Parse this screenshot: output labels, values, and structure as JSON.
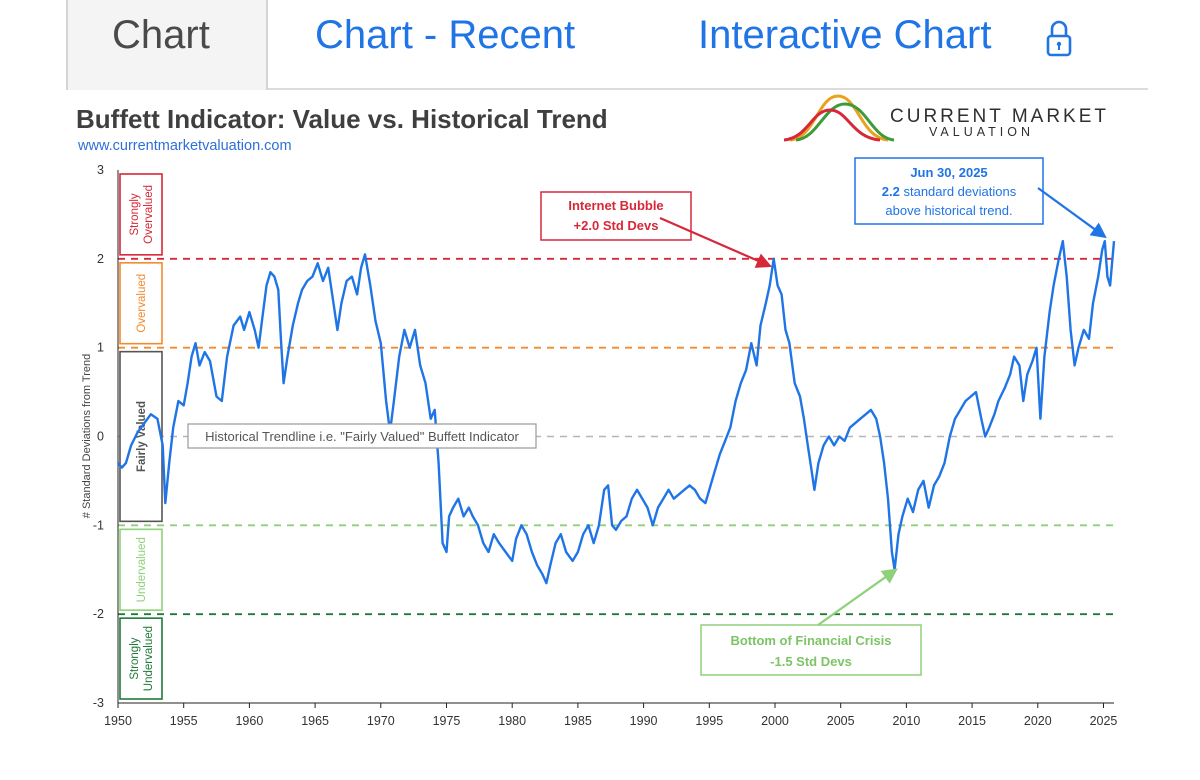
{
  "tabs": [
    {
      "label": "Chart",
      "active": true
    },
    {
      "label": "Chart - Recent",
      "active": false
    },
    {
      "label": "Interactive Chart",
      "active": false,
      "icon": "lock-icon"
    }
  ],
  "colors": {
    "tab_link": "#1f74e6",
    "tab_active_text": "#4a4a4a",
    "series_line": "#1f74e6",
    "strongly_overvalued": "#d62839",
    "overvalued": "#f28a2e",
    "fairly_valued": "#555555",
    "undervalued": "#8fd07a",
    "strongly_undervalued": "#1f7a3a",
    "trend": "#b5b5b5"
  },
  "logo": {
    "line1": "CURRENT MARKET",
    "line2": "VALUATION"
  },
  "chart_data": {
    "type": "line",
    "title": "Buffett Indicator: Value vs. Historical Trend",
    "subtitle": "www.currentmarketvaluation.com",
    "xlabel": "",
    "ylabel": "# Standard Deviations from Trend",
    "xlim": [
      1950,
      2025.8
    ],
    "ylim": [
      -3,
      3
    ],
    "x_ticks": [
      1950,
      1955,
      1960,
      1965,
      1970,
      1975,
      1980,
      1985,
      1990,
      1995,
      2000,
      2005,
      2010,
      2015,
      2020,
      2025
    ],
    "y_ticks": [
      3,
      2,
      1,
      0,
      -1,
      -2,
      -3
    ],
    "reference_lines": [
      {
        "y": 2,
        "color": "#d62839",
        "style": "dashed"
      },
      {
        "y": 1,
        "color": "#f28a2e",
        "style": "dashed"
      },
      {
        "y": 0,
        "color": "#b5b5b5",
        "style": "dashed"
      },
      {
        "y": -1,
        "color": "#8fd07a",
        "style": "dashed"
      },
      {
        "y": -2,
        "color": "#1f7a3a",
        "style": "dashed"
      }
    ],
    "zones": [
      {
        "label": "Strongly Overvalued",
        "lines": [
          "Strongly",
          "Overvalued"
        ],
        "from": 2,
        "to": 3,
        "color": "#d62839"
      },
      {
        "label": "Overvalued",
        "lines": [
          "Overvalued"
        ],
        "from": 1,
        "to": 2,
        "color": "#f28a2e"
      },
      {
        "label": "Fairly Valued",
        "lines": [
          "Fairly Valued"
        ],
        "from": -1,
        "to": 1,
        "color": "#555555"
      },
      {
        "label": "Undervalued",
        "lines": [
          "Undervalued"
        ],
        "from": -2,
        "to": -1,
        "color": "#8fd07a"
      },
      {
        "label": "Strongly Undervalued",
        "lines": [
          "Strongly",
          "Undervalued"
        ],
        "from": -3,
        "to": -2,
        "color": "#1f7a3a"
      }
    ],
    "annotations": {
      "trendline": "Historical Trendline i.e. \"Fairly Valued\" Buffett Indicator",
      "bubble": {
        "line1": "Internet Bubble",
        "line2": "+2.0 Std Devs",
        "x": 2000,
        "y": 2.0
      },
      "crisis": {
        "line1": "Bottom of Financial Crisis",
        "line2": "-1.5 Std Devs",
        "x": 2009.0,
        "y": -1.55
      },
      "latest": {
        "date": "Jun 30, 2025",
        "value_text": "2.2",
        "line2_rest": " standard deviations",
        "line3": "above historical trend.",
        "x": 2025.3,
        "y": 2.2
      }
    },
    "series": [
      {
        "name": "Buffett Indicator (std devs from trend)",
        "color": "#1f74e6",
        "points": [
          [
            1950.0,
            -0.3
          ],
          [
            1950.3,
            -0.35
          ],
          [
            1950.6,
            -0.3
          ],
          [
            1951.0,
            -0.1
          ],
          [
            1951.5,
            0.05
          ],
          [
            1952.0,
            0.15
          ],
          [
            1952.5,
            0.25
          ],
          [
            1953.0,
            0.2
          ],
          [
            1953.4,
            -0.1
          ],
          [
            1953.6,
            -0.75
          ],
          [
            1953.9,
            -0.3
          ],
          [
            1954.2,
            0.1
          ],
          [
            1954.6,
            0.4
          ],
          [
            1955.0,
            0.35
          ],
          [
            1955.3,
            0.6
          ],
          [
            1955.6,
            0.9
          ],
          [
            1955.9,
            1.05
          ],
          [
            1956.2,
            0.8
          ],
          [
            1956.6,
            0.95
          ],
          [
            1957.0,
            0.85
          ],
          [
            1957.5,
            0.45
          ],
          [
            1957.9,
            0.4
          ],
          [
            1958.3,
            0.9
          ],
          [
            1958.8,
            1.25
          ],
          [
            1959.3,
            1.35
          ],
          [
            1959.6,
            1.2
          ],
          [
            1960.0,
            1.4
          ],
          [
            1960.4,
            1.2
          ],
          [
            1960.7,
            1.0
          ],
          [
            1961.0,
            1.35
          ],
          [
            1961.3,
            1.7
          ],
          [
            1961.6,
            1.85
          ],
          [
            1961.9,
            1.8
          ],
          [
            1962.2,
            1.65
          ],
          [
            1962.4,
            1.1
          ],
          [
            1962.6,
            0.6
          ],
          [
            1962.9,
            0.9
          ],
          [
            1963.3,
            1.25
          ],
          [
            1963.7,
            1.5
          ],
          [
            1964.0,
            1.65
          ],
          [
            1964.4,
            1.75
          ],
          [
            1964.8,
            1.8
          ],
          [
            1965.2,
            1.95
          ],
          [
            1965.6,
            1.75
          ],
          [
            1966.0,
            1.9
          ],
          [
            1966.3,
            1.6
          ],
          [
            1966.7,
            1.2
          ],
          [
            1967.0,
            1.5
          ],
          [
            1967.4,
            1.75
          ],
          [
            1967.8,
            1.8
          ],
          [
            1968.2,
            1.6
          ],
          [
            1968.5,
            1.9
          ],
          [
            1968.8,
            2.05
          ],
          [
            1969.2,
            1.7
          ],
          [
            1969.6,
            1.3
          ],
          [
            1970.0,
            1.05
          ],
          [
            1970.4,
            0.4
          ],
          [
            1970.7,
            0.05
          ],
          [
            1971.0,
            0.4
          ],
          [
            1971.4,
            0.9
          ],
          [
            1971.8,
            1.2
          ],
          [
            1972.2,
            1.0
          ],
          [
            1972.6,
            1.2
          ],
          [
            1973.0,
            0.8
          ],
          [
            1973.4,
            0.6
          ],
          [
            1973.8,
            0.2
          ],
          [
            1974.1,
            0.3
          ],
          [
            1974.4,
            -0.3
          ],
          [
            1974.7,
            -1.2
          ],
          [
            1975.0,
            -1.3
          ],
          [
            1975.2,
            -0.9
          ],
          [
            1975.5,
            -0.8
          ],
          [
            1975.9,
            -0.7
          ],
          [
            1976.3,
            -0.9
          ],
          [
            1976.7,
            -0.8
          ],
          [
            1977.0,
            -0.9
          ],
          [
            1977.4,
            -1.0
          ],
          [
            1977.8,
            -1.2
          ],
          [
            1978.2,
            -1.3
          ],
          [
            1978.6,
            -1.1
          ],
          [
            1979.0,
            -1.2
          ],
          [
            1979.5,
            -1.3
          ],
          [
            1980.0,
            -1.4
          ],
          [
            1980.3,
            -1.15
          ],
          [
            1980.7,
            -1.0
          ],
          [
            1981.1,
            -1.1
          ],
          [
            1981.5,
            -1.3
          ],
          [
            1981.9,
            -1.45
          ],
          [
            1982.3,
            -1.55
          ],
          [
            1982.6,
            -1.65
          ],
          [
            1982.9,
            -1.45
          ],
          [
            1983.3,
            -1.2
          ],
          [
            1983.7,
            -1.1
          ],
          [
            1984.1,
            -1.3
          ],
          [
            1984.6,
            -1.4
          ],
          [
            1985.0,
            -1.3
          ],
          [
            1985.4,
            -1.1
          ],
          [
            1985.8,
            -1.0
          ],
          [
            1986.2,
            -1.2
          ],
          [
            1986.6,
            -1.0
          ],
          [
            1987.0,
            -0.6
          ],
          [
            1987.3,
            -0.55
          ],
          [
            1987.6,
            -1.0
          ],
          [
            1987.9,
            -1.05
          ],
          [
            1988.3,
            -0.95
          ],
          [
            1988.7,
            -0.9
          ],
          [
            1989.1,
            -0.7
          ],
          [
            1989.5,
            -0.6
          ],
          [
            1989.9,
            -0.7
          ],
          [
            1990.3,
            -0.8
          ],
          [
            1990.7,
            -1.0
          ],
          [
            1991.1,
            -0.8
          ],
          [
            1991.5,
            -0.7
          ],
          [
            1991.9,
            -0.6
          ],
          [
            1992.3,
            -0.7
          ],
          [
            1992.7,
            -0.65
          ],
          [
            1993.1,
            -0.6
          ],
          [
            1993.5,
            -0.55
          ],
          [
            1993.9,
            -0.6
          ],
          [
            1994.3,
            -0.7
          ],
          [
            1994.7,
            -0.75
          ],
          [
            1995.0,
            -0.6
          ],
          [
            1995.4,
            -0.4
          ],
          [
            1995.8,
            -0.2
          ],
          [
            1996.2,
            -0.05
          ],
          [
            1996.6,
            0.1
          ],
          [
            1997.0,
            0.4
          ],
          [
            1997.4,
            0.6
          ],
          [
            1997.8,
            0.75
          ],
          [
            1998.2,
            1.05
          ],
          [
            1998.6,
            0.8
          ],
          [
            1998.9,
            1.25
          ],
          [
            1999.3,
            1.5
          ],
          [
            1999.6,
            1.7
          ],
          [
            1999.9,
            2.0
          ],
          [
            2000.2,
            1.7
          ],
          [
            2000.5,
            1.6
          ],
          [
            2000.8,
            1.2
          ],
          [
            2001.1,
            1.05
          ],
          [
            2001.5,
            0.6
          ],
          [
            2001.9,
            0.45
          ],
          [
            2002.2,
            0.2
          ],
          [
            2002.5,
            -0.1
          ],
          [
            2002.8,
            -0.4
          ],
          [
            2003.0,
            -0.6
          ],
          [
            2003.3,
            -0.3
          ],
          [
            2003.7,
            -0.1
          ],
          [
            2004.1,
            0.0
          ],
          [
            2004.5,
            -0.1
          ],
          [
            2004.9,
            0.0
          ],
          [
            2005.3,
            -0.05
          ],
          [
            2005.7,
            0.1
          ],
          [
            2006.1,
            0.15
          ],
          [
            2006.5,
            0.2
          ],
          [
            2006.9,
            0.25
          ],
          [
            2007.3,
            0.3
          ],
          [
            2007.7,
            0.2
          ],
          [
            2008.0,
            0.0
          ],
          [
            2008.3,
            -0.3
          ],
          [
            2008.6,
            -0.7
          ],
          [
            2008.9,
            -1.3
          ],
          [
            2009.1,
            -1.5
          ],
          [
            2009.4,
            -1.1
          ],
          [
            2009.7,
            -0.9
          ],
          [
            2010.1,
            -0.7
          ],
          [
            2010.5,
            -0.85
          ],
          [
            2010.9,
            -0.6
          ],
          [
            2011.3,
            -0.5
          ],
          [
            2011.7,
            -0.8
          ],
          [
            2012.1,
            -0.55
          ],
          [
            2012.5,
            -0.45
          ],
          [
            2012.9,
            -0.3
          ],
          [
            2013.3,
            0.0
          ],
          [
            2013.7,
            0.2
          ],
          [
            2014.1,
            0.3
          ],
          [
            2014.5,
            0.4
          ],
          [
            2014.9,
            0.45
          ],
          [
            2015.3,
            0.5
          ],
          [
            2015.7,
            0.2
          ],
          [
            2016.0,
            0.0
          ],
          [
            2016.3,
            0.1
          ],
          [
            2016.7,
            0.25
          ],
          [
            2017.0,
            0.4
          ],
          [
            2017.5,
            0.55
          ],
          [
            2017.9,
            0.7
          ],
          [
            2018.2,
            0.9
          ],
          [
            2018.6,
            0.8
          ],
          [
            2018.9,
            0.4
          ],
          [
            2019.2,
            0.7
          ],
          [
            2019.6,
            0.85
          ],
          [
            2019.9,
            1.0
          ],
          [
            2020.2,
            0.2
          ],
          [
            2020.5,
            0.9
          ],
          [
            2020.9,
            1.4
          ],
          [
            2021.2,
            1.7
          ],
          [
            2021.6,
            2.0
          ],
          [
            2021.9,
            2.2
          ],
          [
            2022.2,
            1.8
          ],
          [
            2022.5,
            1.2
          ],
          [
            2022.8,
            0.8
          ],
          [
            2023.1,
            1.0
          ],
          [
            2023.5,
            1.2
          ],
          [
            2023.9,
            1.1
          ],
          [
            2024.2,
            1.5
          ],
          [
            2024.6,
            1.8
          ],
          [
            2024.9,
            2.1
          ],
          [
            2025.1,
            2.2
          ],
          [
            2025.3,
            1.8
          ],
          [
            2025.5,
            1.7
          ],
          [
            2025.8,
            2.2
          ]
        ]
      }
    ]
  }
}
